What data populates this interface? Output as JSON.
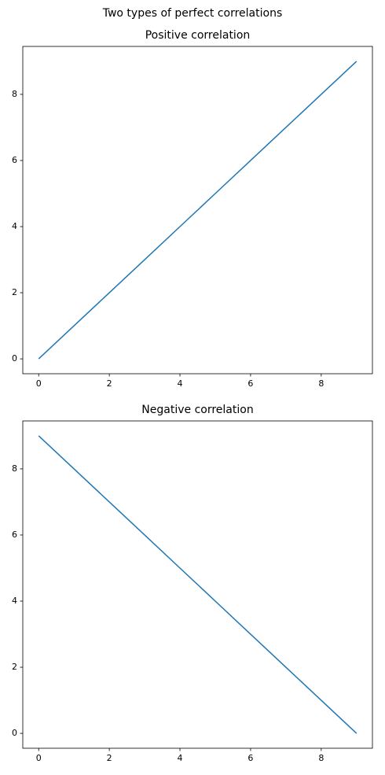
{
  "title": "Two types of perfect correlations",
  "chart_data": [
    {
      "type": "line",
      "title": "Positive correlation",
      "x": [
        0,
        1,
        2,
        3,
        4,
        5,
        6,
        7,
        8,
        9
      ],
      "series": [
        {
          "color": "#1f77b4",
          "values": [
            0,
            1,
            2,
            3,
            4,
            5,
            6,
            7,
            8,
            9
          ]
        }
      ],
      "xlim": [
        -0.45,
        9.45
      ],
      "ylim": [
        -0.45,
        9.45
      ],
      "xticks": [
        0,
        2,
        4,
        6,
        8
      ],
      "yticks": [
        0,
        2,
        4,
        6,
        8
      ],
      "grid": false
    },
    {
      "type": "line",
      "title": "Negative correlation",
      "x": [
        0,
        1,
        2,
        3,
        4,
        5,
        6,
        7,
        8,
        9
      ],
      "series": [
        {
          "color": "#1f77b4",
          "values": [
            9,
            8,
            7,
            6,
            5,
            4,
            3,
            2,
            1,
            0
          ]
        }
      ],
      "xlim": [
        -0.45,
        9.45
      ],
      "ylim": [
        -0.45,
        9.45
      ],
      "xticks": [
        0,
        2,
        4,
        6,
        8
      ],
      "yticks": [
        0,
        2,
        4,
        6,
        8
      ],
      "grid": false
    }
  ]
}
